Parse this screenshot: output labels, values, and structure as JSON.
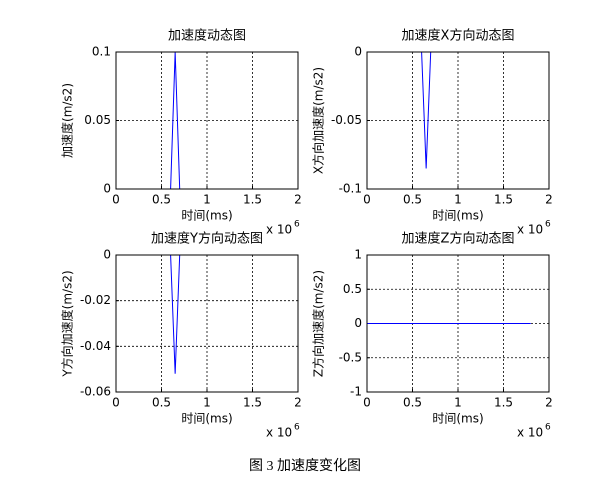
{
  "chart_data": [
    {
      "type": "line",
      "title": "加速度动态图",
      "xlabel": "时间(ms)",
      "ylabel": "加速度(m/s2)",
      "x_multiplier": "x 10",
      "x_multiplier_exponent": "6",
      "x": [
        0,
        0.6,
        0.65,
        0.7,
        1.8
      ],
      "values": [
        0,
        0,
        0.1,
        0,
        0
      ],
      "color": "#0000ff",
      "xlim": [
        0,
        2
      ],
      "xticks": [
        0,
        0.5,
        1,
        1.5,
        2
      ],
      "ylim": [
        0,
        0.1
      ],
      "yticks": [
        0,
        0.05,
        0.1
      ],
      "grid": true
    },
    {
      "type": "line",
      "title": "加速度X方向动态图",
      "xlabel": "时间(ms)",
      "ylabel": "X方向加速度(m/s2)",
      "x_multiplier": "x 10",
      "x_multiplier_exponent": "6",
      "x": [
        0,
        0.6,
        0.65,
        0.7,
        1.8
      ],
      "values": [
        0,
        0,
        -0.085,
        0,
        0
      ],
      "color": "#0000ff",
      "xlim": [
        0,
        2
      ],
      "xticks": [
        0,
        0.5,
        1,
        1.5,
        2
      ],
      "ylim": [
        -0.1,
        0
      ],
      "yticks": [
        -0.1,
        -0.05,
        0
      ],
      "grid": true
    },
    {
      "type": "line",
      "title": "加速度Y方向动态图",
      "xlabel": "时间(ms)",
      "ylabel": "Y方向加速度(m/s2)",
      "x_multiplier": "x 10",
      "x_multiplier_exponent": "6",
      "x": [
        0,
        0.6,
        0.65,
        0.7,
        1.8
      ],
      "values": [
        0,
        0,
        -0.052,
        0,
        0
      ],
      "color": "#0000ff",
      "xlim": [
        0,
        2
      ],
      "xticks": [
        0,
        0.5,
        1,
        1.5,
        2
      ],
      "ylim": [
        -0.06,
        0
      ],
      "yticks": [
        -0.06,
        -0.04,
        -0.02,
        0
      ],
      "grid": true
    },
    {
      "type": "line",
      "title": "加速度Z方向动态图",
      "xlabel": "时间(ms)",
      "ylabel": "Z方向加速度(m/s2)",
      "x_multiplier": "x 10",
      "x_multiplier_exponent": "6",
      "x": [
        0,
        1.8
      ],
      "values": [
        0,
        0
      ],
      "color": "#0000ff",
      "xlim": [
        0,
        2
      ],
      "xticks": [
        0,
        0.5,
        1,
        1.5,
        2
      ],
      "ylim": [
        -1,
        1
      ],
      "yticks": [
        -1,
        -0.5,
        0,
        0.5,
        1
      ],
      "grid": true
    }
  ],
  "caption": "图 3  加速度变化图"
}
